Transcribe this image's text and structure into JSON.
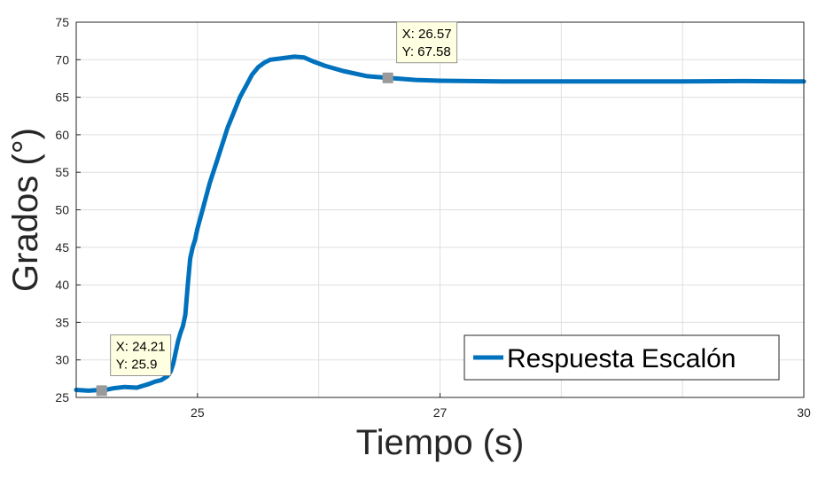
{
  "chart_data": {
    "type": "line",
    "title": "",
    "xlabel": "Tiempo (s)",
    "ylabel": "Grados (°)",
    "xlim": [
      24,
      30
    ],
    "ylim": [
      25,
      75
    ],
    "xticks": [
      25,
      27,
      30
    ],
    "yticks": [
      25,
      30,
      35,
      40,
      45,
      50,
      55,
      60,
      65,
      70,
      75
    ],
    "grid": true,
    "legend_position": "bottom-right",
    "series": [
      {
        "name": "Respuesta Escalón",
        "color": "#0072bd",
        "x": [
          24.0,
          24.1,
          24.2,
          24.21,
          24.3,
          24.4,
          24.5,
          24.6,
          24.65,
          24.7,
          24.75,
          24.78,
          24.8,
          24.82,
          24.84,
          24.86,
          24.88,
          24.9,
          24.92,
          24.94,
          24.96,
          24.98,
          25.0,
          25.05,
          25.1,
          25.15,
          25.2,
          25.25,
          25.3,
          25.35,
          25.4,
          25.45,
          25.5,
          25.55,
          25.6,
          25.7,
          25.8,
          25.88,
          25.95,
          26.05,
          26.2,
          26.4,
          26.57,
          26.8,
          27.0,
          27.5,
          28.0,
          28.5,
          29.0,
          29.5,
          30.0
        ],
        "y": [
          26.0,
          25.9,
          26.0,
          25.9,
          26.2,
          26.4,
          26.3,
          26.8,
          27.1,
          27.3,
          27.8,
          28.5,
          29.5,
          31.0,
          32.5,
          33.6,
          34.5,
          36.0,
          40.0,
          43.5,
          45.0,
          46.0,
          47.5,
          50.5,
          53.5,
          56.0,
          58.5,
          61.0,
          63.0,
          65.0,
          66.5,
          68.0,
          69.0,
          69.6,
          70.0,
          70.2,
          70.4,
          70.3,
          69.8,
          69.2,
          68.5,
          67.8,
          67.58,
          67.3,
          67.2,
          67.1,
          67.1,
          67.1,
          67.1,
          67.15,
          67.1
        ]
      }
    ],
    "datatips": [
      {
        "x_text": "X: 24.21",
        "y_text": "Y: 25.9",
        "x": 24.21,
        "y": 25.9
      },
      {
        "x_text": "X: 26.57",
        "y_text": "Y: 67.58",
        "x": 26.57,
        "y": 67.58
      }
    ]
  }
}
